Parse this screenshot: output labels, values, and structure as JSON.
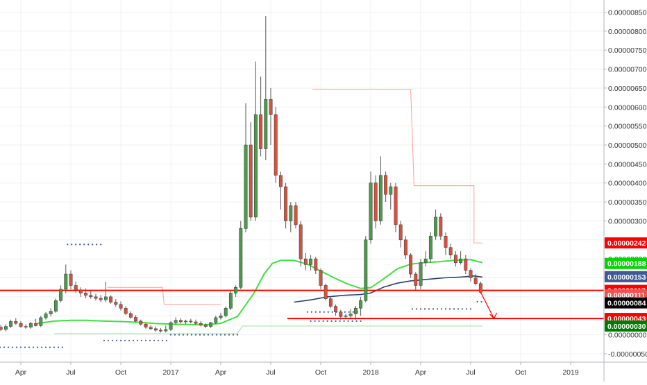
{
  "chart_data": {
    "type": "candlestick",
    "x_ticks": [
      {
        "label": "Apr",
        "t": 0.0
      },
      {
        "label": "Jul",
        "t": 3.0
      },
      {
        "label": "Oct",
        "t": 6.0
      },
      {
        "label": "2017",
        "t": 9.0
      },
      {
        "label": "Apr",
        "t": 12.0
      },
      {
        "label": "Jul",
        "t": 15.0
      },
      {
        "label": "Oct",
        "t": 18.0
      },
      {
        "label": "2018",
        "t": 21.0
      },
      {
        "label": "Apr",
        "t": 24.0
      },
      {
        "label": "Jul",
        "t": 27.0
      },
      {
        "label": "Oct",
        "t": 30.0
      },
      {
        "label": "2019",
        "t": 33.0
      }
    ],
    "x_range": [
      -1.25,
      35.0
    ],
    "y_ticks": [
      "0.00000850",
      "0.00000800",
      "0.00000750",
      "0.00000700",
      "0.00000650",
      "0.00000600",
      "0.00000550",
      "0.00000500",
      "0.00000450",
      "0.00000400",
      "0.00000350",
      "0.00000300",
      "0.00000250",
      "0.00000200",
      "0.00000150",
      "0.00000100",
      "0.00000050",
      "0.00000000",
      "-0.00000050"
    ],
    "y_tick_values": [
      850,
      800,
      750,
      700,
      650,
      600,
      550,
      500,
      450,
      400,
      350,
      300,
      250,
      200,
      150,
      100,
      50,
      0,
      -50
    ],
    "y_unit_note": "values below in units of 1e-8",
    "y_range": [
      -72,
      882
    ],
    "grid": true,
    "price_labels": [
      {
        "label": "0.00000242",
        "value": 242,
        "color": "#ff0000"
      },
      {
        "label": "0.00000188",
        "value": 188,
        "color": "#00d600"
      },
      {
        "label": "0.00000153",
        "value": 153,
        "color": "#3d5a96"
      },
      {
        "label": "0.00000117",
        "value": 117,
        "color": "#ff0000"
      },
      {
        "label": "0.00000111",
        "value": 105,
        "color": "#ef5350"
      },
      {
        "label": "0.00000084",
        "value": 84,
        "color": "#000000"
      },
      {
        "label": "0.00000043",
        "value": 43,
        "color": "#ff0000"
      },
      {
        "label": "0.00000030",
        "value": 23,
        "color": "#007a00"
      }
    ],
    "horizontal_lines": [
      {
        "value": 117,
        "color": "#ff0000"
      },
      {
        "value": 43,
        "color": "#ff0000",
        "t_start": 16.0
      }
    ],
    "candles": [
      {
        "t": -1.2,
        "o": 20,
        "h": 26,
        "l": 10,
        "c": 14
      },
      {
        "t": -0.9,
        "o": 14,
        "h": 28,
        "l": 8,
        "c": 22
      },
      {
        "t": -0.6,
        "o": 22,
        "h": 40,
        "l": 18,
        "c": 35
      },
      {
        "t": -0.3,
        "o": 35,
        "h": 44,
        "l": 26,
        "c": 30
      },
      {
        "t": 0.0,
        "o": 30,
        "h": 36,
        "l": 18,
        "c": 22
      },
      {
        "t": 0.3,
        "o": 22,
        "h": 28,
        "l": 16,
        "c": 20
      },
      {
        "t": 0.6,
        "o": 20,
        "h": 34,
        "l": 16,
        "c": 30
      },
      {
        "t": 0.9,
        "o": 30,
        "h": 42,
        "l": 22,
        "c": 24
      },
      {
        "t": 1.2,
        "o": 24,
        "h": 50,
        "l": 20,
        "c": 45
      },
      {
        "t": 1.5,
        "o": 45,
        "h": 60,
        "l": 40,
        "c": 55
      },
      {
        "t": 1.8,
        "o": 55,
        "h": 70,
        "l": 48,
        "c": 62
      },
      {
        "t": 2.1,
        "o": 62,
        "h": 95,
        "l": 58,
        "c": 90
      },
      {
        "t": 2.4,
        "o": 90,
        "h": 130,
        "l": 85,
        "c": 120
      },
      {
        "t": 2.7,
        "o": 120,
        "h": 185,
        "l": 110,
        "c": 160
      },
      {
        "t": 3.0,
        "o": 160,
        "h": 170,
        "l": 120,
        "c": 130
      },
      {
        "t": 3.3,
        "o": 130,
        "h": 140,
        "l": 110,
        "c": 118
      },
      {
        "t": 3.6,
        "o": 118,
        "h": 125,
        "l": 100,
        "c": 110
      },
      {
        "t": 3.9,
        "o": 110,
        "h": 122,
        "l": 96,
        "c": 104
      },
      {
        "t": 4.2,
        "o": 104,
        "h": 115,
        "l": 95,
        "c": 100
      },
      {
        "t": 4.5,
        "o": 100,
        "h": 108,
        "l": 90,
        "c": 96
      },
      {
        "t": 4.8,
        "o": 96,
        "h": 105,
        "l": 86,
        "c": 92
      },
      {
        "t": 5.1,
        "o": 92,
        "h": 140,
        "l": 86,
        "c": 100
      },
      {
        "t": 5.4,
        "o": 100,
        "h": 104,
        "l": 82,
        "c": 86
      },
      {
        "t": 5.7,
        "o": 86,
        "h": 94,
        "l": 74,
        "c": 80
      },
      {
        "t": 6.0,
        "o": 80,
        "h": 88,
        "l": 64,
        "c": 70
      },
      {
        "t": 6.3,
        "o": 70,
        "h": 76,
        "l": 52,
        "c": 56
      },
      {
        "t": 6.6,
        "o": 56,
        "h": 62,
        "l": 42,
        "c": 46
      },
      {
        "t": 6.9,
        "o": 46,
        "h": 52,
        "l": 32,
        "c": 36
      },
      {
        "t": 7.2,
        "o": 36,
        "h": 40,
        "l": 24,
        "c": 28
      },
      {
        "t": 7.5,
        "o": 28,
        "h": 32,
        "l": 16,
        "c": 20
      },
      {
        "t": 7.8,
        "o": 20,
        "h": 26,
        "l": 12,
        "c": 16
      },
      {
        "t": 8.1,
        "o": 16,
        "h": 22,
        "l": 8,
        "c": 12
      },
      {
        "t": 8.4,
        "o": 12,
        "h": 18,
        "l": 6,
        "c": 10
      },
      {
        "t": 8.7,
        "o": 10,
        "h": 24,
        "l": 6,
        "c": 14
      },
      {
        "t": 9.0,
        "o": 14,
        "h": 36,
        "l": 10,
        "c": 32
      },
      {
        "t": 9.3,
        "o": 32,
        "h": 46,
        "l": 26,
        "c": 38
      },
      {
        "t": 9.6,
        "o": 38,
        "h": 44,
        "l": 30,
        "c": 34
      },
      {
        "t": 9.9,
        "o": 34,
        "h": 40,
        "l": 28,
        "c": 36
      },
      {
        "t": 10.2,
        "o": 36,
        "h": 42,
        "l": 30,
        "c": 34
      },
      {
        "t": 10.5,
        "o": 34,
        "h": 40,
        "l": 26,
        "c": 30
      },
      {
        "t": 10.8,
        "o": 30,
        "h": 36,
        "l": 22,
        "c": 26
      },
      {
        "t": 11.1,
        "o": 26,
        "h": 30,
        "l": 18,
        "c": 22
      },
      {
        "t": 11.4,
        "o": 22,
        "h": 34,
        "l": 18,
        "c": 32
      },
      {
        "t": 11.7,
        "o": 32,
        "h": 50,
        "l": 28,
        "c": 45
      },
      {
        "t": 12.0,
        "o": 45,
        "h": 58,
        "l": 40,
        "c": 50
      },
      {
        "t": 12.3,
        "o": 50,
        "h": 75,
        "l": 46,
        "c": 70
      },
      {
        "t": 12.6,
        "o": 70,
        "h": 115,
        "l": 65,
        "c": 110
      },
      {
        "t": 12.9,
        "o": 110,
        "h": 130,
        "l": 100,
        "c": 125
      },
      {
        "t": 13.2,
        "o": 125,
        "h": 300,
        "l": 120,
        "c": 280
      },
      {
        "t": 13.5,
        "o": 280,
        "h": 610,
        "l": 270,
        "c": 500
      },
      {
        "t": 13.8,
        "o": 500,
        "h": 560,
        "l": 300,
        "c": 310
      },
      {
        "t": 14.1,
        "o": 310,
        "h": 720,
        "l": 300,
        "c": 580
      },
      {
        "t": 14.4,
        "o": 580,
        "h": 680,
        "l": 470,
        "c": 490
      },
      {
        "t": 14.7,
        "o": 490,
        "h": 840,
        "l": 460,
        "c": 620
      },
      {
        "t": 15.0,
        "o": 620,
        "h": 650,
        "l": 500,
        "c": 580
      },
      {
        "t": 15.3,
        "o": 580,
        "h": 600,
        "l": 400,
        "c": 420
      },
      {
        "t": 15.6,
        "o": 420,
        "h": 430,
        "l": 330,
        "c": 390
      },
      {
        "t": 15.9,
        "o": 390,
        "h": 400,
        "l": 280,
        "c": 300
      },
      {
        "t": 16.2,
        "o": 300,
        "h": 350,
        "l": 270,
        "c": 340
      },
      {
        "t": 16.5,
        "o": 340,
        "h": 350,
        "l": 280,
        "c": 290
      },
      {
        "t": 16.8,
        "o": 290,
        "h": 300,
        "l": 180,
        "c": 200
      },
      {
        "t": 17.1,
        "o": 200,
        "h": 215,
        "l": 170,
        "c": 185
      },
      {
        "t": 17.4,
        "o": 185,
        "h": 210,
        "l": 170,
        "c": 200
      },
      {
        "t": 17.7,
        "o": 200,
        "h": 205,
        "l": 160,
        "c": 170
      },
      {
        "t": 18.0,
        "o": 170,
        "h": 175,
        "l": 120,
        "c": 130
      },
      {
        "t": 18.3,
        "o": 130,
        "h": 135,
        "l": 90,
        "c": 95
      },
      {
        "t": 18.6,
        "o": 95,
        "h": 100,
        "l": 70,
        "c": 75
      },
      {
        "t": 18.9,
        "o": 75,
        "h": 80,
        "l": 50,
        "c": 60
      },
      {
        "t": 19.2,
        "o": 60,
        "h": 66,
        "l": 40,
        "c": 48
      },
      {
        "t": 19.5,
        "o": 48,
        "h": 55,
        "l": 42,
        "c": 50
      },
      {
        "t": 19.8,
        "o": 50,
        "h": 68,
        "l": 45,
        "c": 55
      },
      {
        "t": 20.1,
        "o": 55,
        "h": 76,
        "l": 40,
        "c": 70
      },
      {
        "t": 20.4,
        "o": 70,
        "h": 100,
        "l": 50,
        "c": 90
      },
      {
        "t": 20.7,
        "o": 90,
        "h": 260,
        "l": 85,
        "c": 250
      },
      {
        "t": 21.0,
        "o": 250,
        "h": 430,
        "l": 240,
        "c": 400
      },
      {
        "t": 21.3,
        "o": 400,
        "h": 420,
        "l": 280,
        "c": 300
      },
      {
        "t": 21.6,
        "o": 300,
        "h": 470,
        "l": 290,
        "c": 420
      },
      {
        "t": 21.9,
        "o": 420,
        "h": 430,
        "l": 350,
        "c": 370
      },
      {
        "t": 22.2,
        "o": 370,
        "h": 400,
        "l": 330,
        "c": 390
      },
      {
        "t": 22.5,
        "o": 390,
        "h": 400,
        "l": 270,
        "c": 290
      },
      {
        "t": 22.8,
        "o": 290,
        "h": 300,
        "l": 230,
        "c": 250
      },
      {
        "t": 23.1,
        "o": 250,
        "h": 260,
        "l": 200,
        "c": 210
      },
      {
        "t": 23.4,
        "o": 210,
        "h": 215,
        "l": 150,
        "c": 160
      },
      {
        "t": 23.7,
        "o": 160,
        "h": 165,
        "l": 115,
        "c": 130
      },
      {
        "t": 24.0,
        "o": 130,
        "h": 200,
        "l": 120,
        "c": 190
      },
      {
        "t": 24.3,
        "o": 190,
        "h": 220,
        "l": 180,
        "c": 200
      },
      {
        "t": 24.6,
        "o": 200,
        "h": 270,
        "l": 190,
        "c": 260
      },
      {
        "t": 24.9,
        "o": 260,
        "h": 330,
        "l": 250,
        "c": 310
      },
      {
        "t": 25.2,
        "o": 310,
        "h": 320,
        "l": 250,
        "c": 260
      },
      {
        "t": 25.5,
        "o": 260,
        "h": 270,
        "l": 210,
        "c": 230
      },
      {
        "t": 25.8,
        "o": 230,
        "h": 240,
        "l": 200,
        "c": 210
      },
      {
        "t": 26.1,
        "o": 210,
        "h": 220,
        "l": 180,
        "c": 190
      },
      {
        "t": 26.4,
        "o": 190,
        "h": 220,
        "l": 185,
        "c": 200
      },
      {
        "t": 26.7,
        "o": 200,
        "h": 210,
        "l": 160,
        "c": 170
      },
      {
        "t": 27.0,
        "o": 170,
        "h": 175,
        "l": 140,
        "c": 150
      },
      {
        "t": 27.3,
        "o": 150,
        "h": 160,
        "l": 130,
        "c": 135
      },
      {
        "t": 27.6,
        "o": 135,
        "h": 140,
        "l": 108,
        "c": 112
      }
    ],
    "bullish_color": "#4c9a4c",
    "bearish_color": "#d45340",
    "ma_green": {
      "color": "#3fe03f",
      "points": [
        [
          1.0,
          30
        ],
        [
          2.0,
          36
        ],
        [
          3.0,
          38
        ],
        [
          4.0,
          38
        ],
        [
          5.0,
          36
        ],
        [
          6.0,
          35
        ],
        [
          7.0,
          33
        ],
        [
          8.0,
          30
        ],
        [
          9.0,
          28
        ],
        [
          10.0,
          27
        ],
        [
          11.0,
          26
        ],
        [
          12.0,
          30
        ],
        [
          13.0,
          48
        ],
        [
          14.0,
          110
        ],
        [
          14.6,
          160
        ],
        [
          15.1,
          188
        ],
        [
          15.6,
          196
        ],
        [
          16.4,
          196
        ],
        [
          17.2,
          186
        ],
        [
          18.0,
          168
        ],
        [
          18.8,
          150
        ],
        [
          19.6,
          134
        ],
        [
          20.4,
          122
        ],
        [
          21.0,
          124
        ],
        [
          21.8,
          148
        ],
        [
          22.6,
          174
        ],
        [
          23.4,
          186
        ],
        [
          24.2,
          190
        ],
        [
          25.0,
          192
        ],
        [
          26.0,
          196
        ],
        [
          27.0,
          198
        ],
        [
          27.7,
          190
        ]
      ]
    },
    "ma_navy": {
      "color": "#27406b",
      "points": [
        [
          16.4,
          86
        ],
        [
          17.4,
          92
        ],
        [
          18.4,
          100
        ],
        [
          19.4,
          104
        ],
        [
          20.4,
          106
        ],
        [
          21.0,
          110
        ],
        [
          21.8,
          126
        ],
        [
          22.6,
          136
        ],
        [
          23.4,
          142
        ],
        [
          24.4,
          146
        ],
        [
          25.4,
          150
        ],
        [
          26.4,
          152
        ],
        [
          27.2,
          155
        ],
        [
          27.7,
          152
        ]
      ]
    },
    "resistance_step": {
      "color": "#ff9d99",
      "points": [
        [
          17.5,
          646
        ],
        [
          23.4,
          646
        ],
        [
          23.6,
          393
        ],
        [
          27.2,
          393
        ],
        [
          27.2,
          242
        ],
        [
          27.7,
          242
        ]
      ]
    },
    "resistance_step_early": {
      "color": "#ff9d99",
      "points": [
        [
          5.2,
          125
        ],
        [
          8.5,
          125
        ],
        [
          8.6,
          80
        ],
        [
          12.0,
          80
        ]
      ]
    },
    "support_step": {
      "color": "#a0dca0",
      "points": [
        [
          2.0,
          3
        ],
        [
          13.0,
          3
        ],
        [
          13.3,
          23
        ],
        [
          27.7,
          23
        ]
      ]
    },
    "dot_rows": [
      {
        "t_start": 2.8,
        "t_end": 5.0,
        "value": 238,
        "color": "#3d5a96"
      },
      {
        "t_start": -1.25,
        "t_end": 2.7,
        "value": -33,
        "color": "#3d5a96"
      },
      {
        "t_start": 5.0,
        "t_end": 8.8,
        "value": -15,
        "color": "#3d5a96"
      },
      {
        "t_start": 9.0,
        "t_end": 13.0,
        "value": 0,
        "color": "#3d5a96"
      },
      {
        "t_start": 17.2,
        "t_end": 20.2,
        "value": 60,
        "color": "#3d5a96"
      },
      {
        "t_start": 17.4,
        "t_end": 20.5,
        "value": 36,
        "color": "#3d5a96"
      },
      {
        "t_start": 23.5,
        "t_end": 27.2,
        "value": 68,
        "color": "#3d5a96"
      },
      {
        "t_start": 27.4,
        "t_end": 27.8,
        "value": 87,
        "color": "#3d5a96"
      }
    ],
    "forecast_arrow": {
      "from": [
        27.6,
        112
      ],
      "to": [
        28.4,
        43
      ],
      "color": "#ff0000"
    }
  }
}
